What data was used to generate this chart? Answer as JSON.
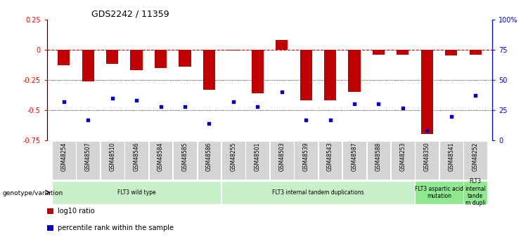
{
  "title": "GDS2242 / 11359",
  "samples": [
    "GSM48254",
    "GSM48507",
    "GSM48510",
    "GSM48546",
    "GSM48584",
    "GSM48585",
    "GSM48586",
    "GSM48255",
    "GSM48501",
    "GSM48503",
    "GSM48539",
    "GSM48543",
    "GSM48587",
    "GSM48588",
    "GSM48253",
    "GSM48350",
    "GSM48541",
    "GSM48252"
  ],
  "log10_ratio": [
    -0.13,
    -0.26,
    -0.12,
    -0.17,
    -0.15,
    -0.14,
    -0.33,
    -0.005,
    -0.36,
    0.08,
    -0.42,
    -0.42,
    -0.35,
    -0.04,
    -0.04,
    -0.7,
    -0.05,
    -0.04
  ],
  "percentile_rank": [
    32,
    17,
    35,
    33,
    28,
    28,
    14,
    32,
    28,
    40,
    17,
    17,
    30,
    30,
    27,
    8,
    20,
    37
  ],
  "groups": [
    {
      "label": "FLT3 wild type",
      "start": 0,
      "end": 7,
      "color": "#c8f0c8"
    },
    {
      "label": "FLT3 internal tandem duplications",
      "start": 7,
      "end": 15,
      "color": "#c8f0c8"
    },
    {
      "label": "FLT3 aspartic acid\nmutation",
      "start": 15,
      "end": 17,
      "color": "#90e890"
    },
    {
      "label": "FLT3\ninternal\ntande\nm dupli",
      "start": 17,
      "end": 18,
      "color": "#90e890"
    }
  ],
  "bar_color": "#c00000",
  "dot_color": "#0000cc",
  "ref_line_color": "#cc0000",
  "left_ylim": [
    -0.75,
    0.25
  ],
  "right_ylim": [
    0,
    100
  ],
  "left_yticks": [
    -0.75,
    -0.5,
    -0.25,
    0,
    0.25
  ],
  "right_yticks": [
    0,
    25,
    50,
    75,
    100
  ],
  "right_ytick_labels": [
    "0",
    "25",
    "50",
    "75",
    "100%"
  ],
  "background_color": "#ffffff",
  "legend_items": [
    {
      "label": "log10 ratio",
      "color": "#c00000"
    },
    {
      "label": "percentile rank within the sample",
      "color": "#0000cc"
    }
  ]
}
